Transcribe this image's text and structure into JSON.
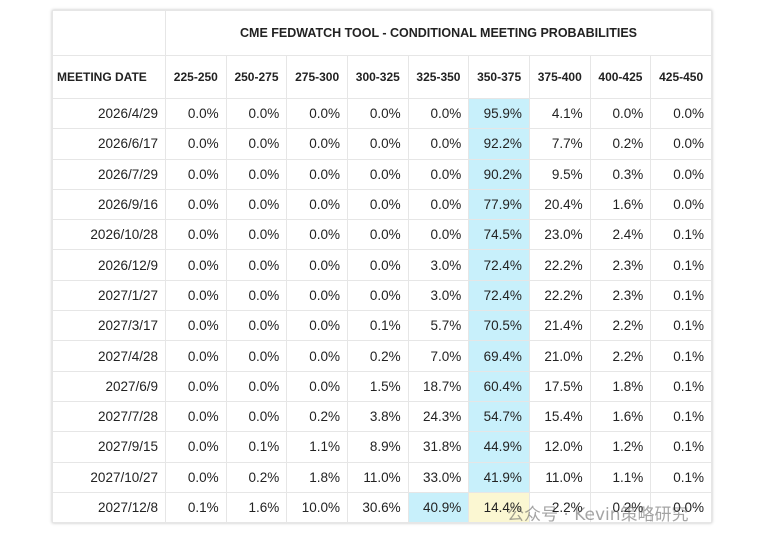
{
  "table": {
    "title": "CME FEDWATCH TOOL - CONDITIONAL MEETING PROBABILITIES",
    "header": [
      "MEETING DATE",
      "225-250",
      "250-275",
      "275-300",
      "300-325",
      "325-350",
      "350-375",
      "375-400",
      "400-425",
      "425-450"
    ],
    "rows": [
      [
        "2026/4/29",
        "0.0%",
        "0.0%",
        "0.0%",
        "0.0%",
        "0.0%",
        "95.9%",
        "4.1%",
        "0.0%",
        "0.0%"
      ],
      [
        "2026/6/17",
        "0.0%",
        "0.0%",
        "0.0%",
        "0.0%",
        "0.0%",
        "92.2%",
        "7.7%",
        "0.2%",
        "0.0%"
      ],
      [
        "2026/7/29",
        "0.0%",
        "0.0%",
        "0.0%",
        "0.0%",
        "0.0%",
        "90.2%",
        "9.5%",
        "0.3%",
        "0.0%"
      ],
      [
        "2026/9/16",
        "0.0%",
        "0.0%",
        "0.0%",
        "0.0%",
        "0.0%",
        "77.9%",
        "20.4%",
        "1.6%",
        "0.0%"
      ],
      [
        "2026/10/28",
        "0.0%",
        "0.0%",
        "0.0%",
        "0.0%",
        "0.0%",
        "74.5%",
        "23.0%",
        "2.4%",
        "0.1%"
      ],
      [
        "2026/12/9",
        "0.0%",
        "0.0%",
        "0.0%",
        "0.0%",
        "3.0%",
        "72.4%",
        "22.2%",
        "2.3%",
        "0.1%"
      ],
      [
        "2027/1/27",
        "0.0%",
        "0.0%",
        "0.0%",
        "0.0%",
        "3.0%",
        "72.4%",
        "22.2%",
        "2.3%",
        "0.1%"
      ],
      [
        "2027/3/17",
        "0.0%",
        "0.0%",
        "0.0%",
        "0.1%",
        "5.7%",
        "70.5%",
        "21.4%",
        "2.2%",
        "0.1%"
      ],
      [
        "2027/4/28",
        "0.0%",
        "0.0%",
        "0.0%",
        "0.2%",
        "7.0%",
        "69.4%",
        "21.0%",
        "2.2%",
        "0.1%"
      ],
      [
        "2027/6/9",
        "0.0%",
        "0.0%",
        "0.0%",
        "1.5%",
        "18.7%",
        "60.4%",
        "17.5%",
        "1.8%",
        "0.1%"
      ],
      [
        "2027/7/28",
        "0.0%",
        "0.0%",
        "0.2%",
        "3.8%",
        "24.3%",
        "54.7%",
        "15.4%",
        "1.6%",
        "0.1%"
      ],
      [
        "2027/9/15",
        "0.0%",
        "0.1%",
        "1.1%",
        "8.9%",
        "31.8%",
        "44.9%",
        "12.0%",
        "1.2%",
        "0.1%"
      ],
      [
        "2027/10/27",
        "0.0%",
        "0.2%",
        "1.8%",
        "11.0%",
        "33.0%",
        "41.9%",
        "11.0%",
        "1.1%",
        "0.1%"
      ],
      [
        "2027/12/8",
        "0.1%",
        "1.6%",
        "10.0%",
        "30.6%",
        "40.9%",
        "14.4%",
        "2.2%",
        "0.2%",
        "0.0%"
      ]
    ]
  },
  "watermark": "公众号 · Kevin策略研究"
}
